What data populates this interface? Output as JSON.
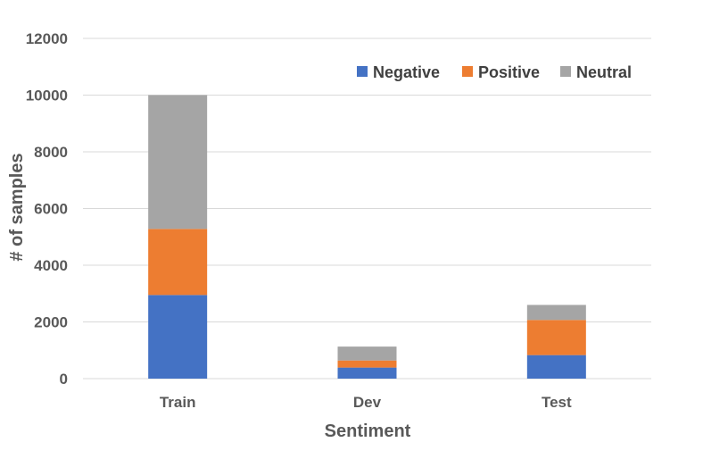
{
  "chart_data": {
    "type": "bar",
    "stacked": true,
    "categories": [
      "Train",
      "Dev",
      "Test"
    ],
    "series": [
      {
        "name": "Negative",
        "color": "#4472C4",
        "values": [
          2950,
          390,
          830
        ]
      },
      {
        "name": "Positive",
        "color": "#ED7D31",
        "values": [
          2330,
          250,
          1240
        ]
      },
      {
        "name": "Neutral",
        "color": "#A5A5A5",
        "values": [
          4720,
          490,
          530
        ]
      }
    ],
    "xlabel": "Sentiment",
    "ylabel": "# of samples",
    "ylim": [
      0,
      12000
    ],
    "yticks": [
      0,
      2000,
      4000,
      6000,
      8000,
      10000,
      12000
    ],
    "grid": true,
    "legend_position": "top-right"
  }
}
